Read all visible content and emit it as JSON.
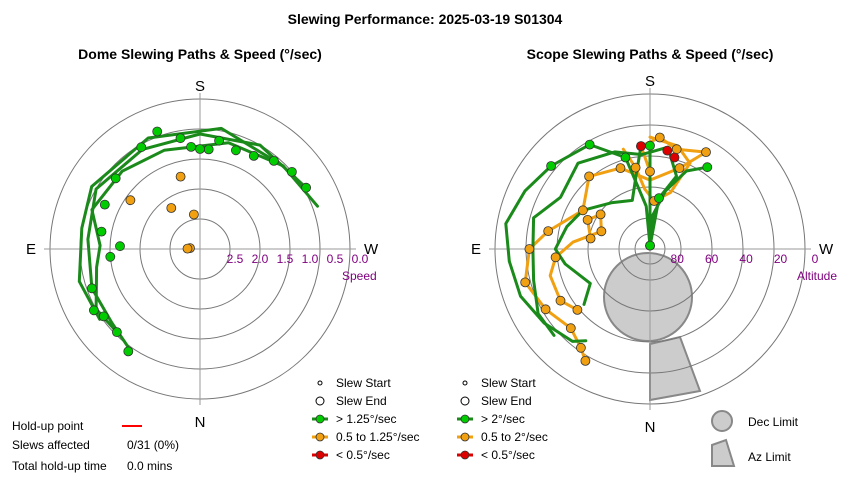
{
  "title": "Slewing Performance: 2025-03-19 S01304",
  "colors": {
    "fast": "#00cc00",
    "fast_line": "#1a8a1a",
    "medium": "#f0a010",
    "slow": "#dd0000",
    "ring": "#777777",
    "axis": "#999999",
    "label": "#800080",
    "limit_fill": "#cccccc",
    "limit_stroke": "#888888",
    "holdup": "#ff0000"
  },
  "chart_data": [
    {
      "type": "scatter",
      "plot": "polar",
      "title": "Dome Slewing Paths & Speed (°/sec)",
      "radial_axis": {
        "label": "Speed",
        "ticks": [
          2.5,
          2.0,
          1.5,
          1.0,
          0.5,
          0.0
        ],
        "tick_labels": [
          "2.5",
          "2.0",
          "1.5",
          "1.0",
          "0.5",
          "0.0"
        ],
        "range": [
          3.0,
          0.0
        ]
      },
      "compass": [
        "S",
        "W",
        "N",
        "E"
      ],
      "legend": [
        {
          "label": "Slew Start",
          "kind": "start"
        },
        {
          "label": "Slew End",
          "kind": "end"
        },
        {
          "label": "> 1.25°/sec",
          "kind": "fast"
        },
        {
          "label": "0.5 to 1.25°/sec",
          "kind": "medium"
        },
        {
          "label": "< 0.5°/sec",
          "kind": "slow"
        }
      ],
      "series": [
        {
          "speed": "medium",
          "kind": "points",
          "points": [
            [
              170,
              2.3
            ],
            [
              165,
              1.5
            ],
            [
              145,
              2.0
            ],
            [
              125,
              1.3
            ],
            [
              95,
              2.8
            ],
            [
              92,
              2.75
            ]
          ]
        },
        {
          "speed": "fast",
          "kind": "points",
          "points": [
            [
              190,
              0.8
            ],
            [
              185,
              1.0
            ],
            [
              180,
              1.0
            ],
            [
              175,
              0.95
            ],
            [
              170,
              0.75
            ],
            [
              200,
              0.9
            ],
            [
              210,
              0.85
            ],
            [
              160,
              0.5
            ],
            [
              150,
              0.65
            ],
            [
              130,
              0.8
            ],
            [
              115,
              0.9
            ],
            [
              100,
              1.0
            ],
            [
              92,
              1.4
            ],
            [
              85,
              1.2
            ],
            [
              70,
              0.7
            ],
            [
              60,
              0.55
            ],
            [
              55,
              0.65
            ],
            [
              45,
              0.65
            ],
            [
              35,
              0.5
            ],
            [
              220,
              0.7
            ],
            [
              230,
              0.6
            ],
            [
              240,
              0.55
            ]
          ]
        },
        {
          "speed": "fast",
          "kind": "path",
          "points": [
            [
              250,
              0.5
            ],
            [
              225,
              0.65
            ],
            [
              195,
              0.8
            ],
            [
              160,
              0.9
            ],
            [
              135,
              0.8
            ],
            [
              110,
              0.7
            ],
            [
              92,
              1.0
            ],
            [
              80,
              0.9
            ],
            [
              60,
              0.6
            ],
            [
              45,
              0.65
            ]
          ]
        },
        {
          "speed": "fast",
          "kind": "path",
          "points": [
            [
              240,
              0.55
            ],
            [
              210,
              0.6
            ],
            [
              180,
              0.7
            ],
            [
              150,
              0.7
            ],
            [
              120,
              0.6
            ],
            [
              95,
              0.75
            ],
            [
              70,
              0.7
            ],
            [
              50,
              0.7
            ],
            [
              35,
              0.55
            ]
          ]
        },
        {
          "speed": "fast",
          "kind": "path",
          "points": [
            [
              225,
              0.65
            ],
            [
              190,
              0.55
            ],
            [
              155,
              0.55
            ],
            [
              120,
              0.5
            ],
            [
              100,
              0.6
            ],
            [
              75,
              0.5
            ],
            [
              55,
              0.55
            ]
          ]
        }
      ]
    },
    {
      "type": "scatter",
      "plot": "polar",
      "title": "Scope Slewing Paths & Speed (°/sec)",
      "radial_axis": {
        "label": "Altitude",
        "ticks": [
          80,
          60,
          40,
          20,
          0
        ],
        "tick_labels": [
          "80",
          "60",
          "40",
          "20",
          "0"
        ],
        "range": [
          90,
          0
        ]
      },
      "compass": [
        "S",
        "W",
        "N",
        "E"
      ],
      "legend": [
        {
          "label": "Slew Start",
          "kind": "start"
        },
        {
          "label": "Slew End",
          "kind": "end"
        },
        {
          "label": "> 2°/sec",
          "kind": "fast"
        },
        {
          "label": "0.5 to 2°/sec",
          "kind": "medium"
        },
        {
          "label": "< 0.5°/sec",
          "kind": "slow"
        }
      ],
      "limits": [
        {
          "label": "Dec Limit",
          "kind": "dec"
        },
        {
          "label": "Az Limit",
          "kind": "az"
        }
      ],
      "series": [
        {
          "speed": "medium",
          "kind": "path",
          "points": [
            [
              180,
              45
            ],
            [
              175,
              30
            ],
            [
              185,
              25
            ],
            [
              195,
              30
            ],
            [
              210,
              25
            ],
            [
              200,
              40
            ],
            [
              180,
              50
            ],
            [
              160,
              40
            ],
            [
              140,
              35
            ],
            [
              120,
              45
            ],
            [
              100,
              30
            ],
            [
              90,
              20
            ],
            [
              75,
              15
            ],
            [
              60,
              20
            ],
            [
              45,
              25
            ],
            [
              35,
              20
            ],
            [
              30,
              15
            ]
          ]
        },
        {
          "speed": "medium",
          "kind": "path",
          "points": [
            [
              165,
              30
            ],
            [
              170,
              42
            ],
            [
              175,
              55
            ],
            [
              185,
              62
            ],
            [
              200,
              55
            ],
            [
              205,
              35
            ],
            [
              195,
              28
            ],
            [
              180,
              25
            ]
          ]
        },
        {
          "speed": "medium",
          "kind": "path",
          "points": [
            [
              100,
              55
            ],
            [
              115,
              50
            ],
            [
              125,
              55
            ],
            [
              110,
              60
            ],
            [
              95,
              45
            ],
            [
              85,
              35
            ],
            [
              75,
              30
            ],
            [
              60,
              30
            ],
            [
              50,
              35
            ]
          ]
        },
        {
          "speed": "fast",
          "kind": "path",
          "points": [
            [
              180,
              30
            ],
            [
              180,
              60
            ],
            [
              180,
              88
            ],
            [
              175,
              65
            ],
            [
              165,
              35
            ],
            [
              150,
              20
            ],
            [
              130,
              15
            ],
            [
              115,
              10
            ],
            [
              100,
              5
            ],
            [
              85,
              8
            ],
            [
              70,
              10
            ],
            [
              55,
              15
            ],
            [
              40,
              20
            ],
            [
              35,
              25
            ]
          ]
        },
        {
          "speed": "fast",
          "kind": "path",
          "points": [
            [
              215,
              32
            ],
            [
              205,
              40
            ],
            [
              195,
              55
            ],
            [
              185,
              70
            ],
            [
              182,
              88
            ],
            [
              190,
              60
            ],
            [
              200,
              45
            ],
            [
              190,
              30
            ],
            [
              175,
              35
            ],
            [
              160,
              30
            ],
            [
              140,
              25
            ],
            [
              120,
              30
            ],
            [
              105,
              20
            ],
            [
              90,
              22
            ],
            [
              75,
              20
            ],
            [
              60,
              15
            ],
            [
              48,
              15
            ]
          ]
        },
        {
          "speed": "fast",
          "kind": "path",
          "points": [
            [
              175,
              30
            ],
            [
              170,
              45
            ],
            [
              160,
              60
            ],
            [
              140,
              55
            ],
            [
              120,
              45
            ],
            [
              105,
              40
            ],
            [
              90,
              35
            ],
            [
              80,
              40
            ],
            [
              60,
              50
            ],
            [
              50,
              40
            ]
          ]
        },
        {
          "speed": "medium",
          "kind": "points",
          "points": [
            [
              180,
              45
            ],
            [
              175,
              30
            ],
            [
              185,
              25
            ],
            [
              195,
              30
            ],
            [
              210,
              25
            ],
            [
              200,
              40
            ],
            [
              160,
              40
            ],
            [
              140,
              35
            ],
            [
              120,
              45
            ],
            [
              100,
              30
            ],
            [
              90,
              20
            ],
            [
              75,
              15
            ],
            [
              60,
              20
            ],
            [
              45,
              25
            ],
            [
              35,
              20
            ],
            [
              30,
              15
            ],
            [
              100,
              55
            ],
            [
              115,
              50
            ],
            [
              125,
              55
            ],
            [
              110,
              60
            ],
            [
              85,
              35
            ],
            [
              60,
              30
            ],
            [
              50,
              35
            ],
            [
              170,
              42
            ],
            [
              185,
              62
            ]
          ]
        },
        {
          "speed": "fast",
          "kind": "points",
          "points": [
            [
              180,
              30
            ],
            [
              180,
              88
            ],
            [
              165,
              35
            ],
            [
              130,
              15
            ],
            [
              215,
              32
            ],
            [
              150,
              20
            ],
            [
              190,
              60
            ],
            [
              182,
              88
            ]
          ]
        },
        {
          "speed": "slow",
          "kind": "points",
          "points": [
            [
              175,
              30
            ],
            [
              195,
              35
            ],
            [
              190,
              32
            ]
          ]
        }
      ]
    }
  ],
  "holdup": {
    "point_label": "Hold-up point",
    "slews_label": "Slews affected",
    "slews_value": "0/31 (0%)",
    "time_label": "Total hold-up time",
    "time_value": "0.0 mins"
  }
}
